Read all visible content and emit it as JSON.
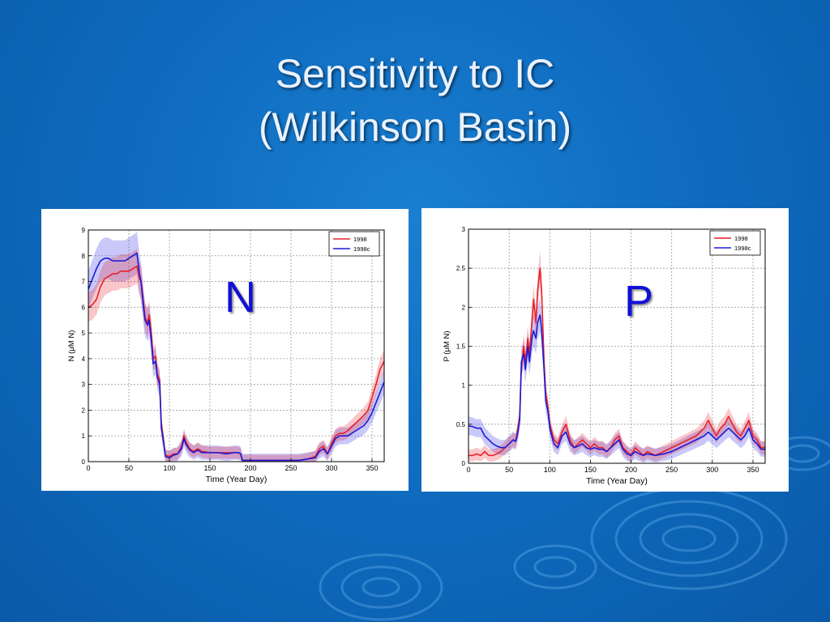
{
  "slide": {
    "title_line1": "Sensitivity to IC",
    "title_line2": "(Wilkinson Basin)"
  },
  "colors": {
    "background": "#0f6cc0",
    "series_1998": "#e8202a",
    "series_1998c": "#1a1ad8"
  },
  "chart_data": [
    {
      "type": "line",
      "panel_label": "N",
      "xlabel": "Time (Year Day)",
      "ylabel": "N (μM N)",
      "xlim": [
        0,
        365
      ],
      "ylim": [
        0,
        9
      ],
      "xticks": [
        0,
        50,
        100,
        150,
        200,
        250,
        300,
        350
      ],
      "yticks": [
        0,
        1,
        2,
        3,
        4,
        5,
        6,
        7,
        8,
        9
      ],
      "grid": true,
      "legend_position": "top-right",
      "series": [
        {
          "name": "1998",
          "color": "#e8202a",
          "x": [
            0,
            5,
            10,
            15,
            20,
            25,
            30,
            35,
            40,
            45,
            50,
            55,
            60,
            63,
            65,
            68,
            70,
            73,
            75,
            78,
            80,
            83,
            85,
            88,
            90,
            93,
            95,
            100,
            105,
            110,
            115,
            118,
            120,
            125,
            130,
            135,
            140,
            150,
            160,
            170,
            180,
            185,
            188,
            190,
            200,
            220,
            240,
            260,
            270,
            280,
            285,
            290,
            295,
            300,
            305,
            310,
            315,
            320,
            330,
            340,
            345,
            350,
            355,
            360,
            365
          ],
          "y": [
            6.0,
            6.1,
            6.3,
            6.8,
            7.1,
            7.2,
            7.3,
            7.3,
            7.4,
            7.4,
            7.4,
            7.5,
            7.6,
            7.1,
            7.0,
            6.2,
            5.6,
            5.4,
            5.7,
            4.9,
            4.0,
            4.1,
            3.4,
            3.2,
            1.5,
            0.8,
            0.25,
            0.2,
            0.3,
            0.3,
            0.6,
            1.0,
            0.8,
            0.5,
            0.4,
            0.5,
            0.4,
            0.35,
            0.35,
            0.35,
            0.35,
            0.35,
            0.3,
            0.05,
            0.05,
            0.05,
            0.05,
            0.05,
            0.1,
            0.2,
            0.5,
            0.6,
            0.3,
            0.7,
            1.0,
            1.1,
            1.1,
            1.2,
            1.5,
            1.8,
            2.0,
            2.5,
            3.0,
            3.6,
            3.9
          ]
        },
        {
          "name": "1998c",
          "color": "#1a1ad8",
          "x": [
            0,
            5,
            10,
            15,
            20,
            25,
            30,
            35,
            40,
            45,
            50,
            55,
            60,
            63,
            65,
            68,
            70,
            73,
            75,
            78,
            80,
            83,
            85,
            88,
            90,
            93,
            95,
            100,
            105,
            110,
            115,
            118,
            120,
            125,
            130,
            135,
            140,
            150,
            160,
            170,
            180,
            185,
            188,
            190,
            200,
            220,
            240,
            260,
            270,
            280,
            285,
            290,
            295,
            300,
            305,
            310,
            315,
            320,
            330,
            340,
            345,
            350,
            355,
            360,
            365
          ],
          "y": [
            6.7,
            7.1,
            7.5,
            7.8,
            7.9,
            7.9,
            7.8,
            7.8,
            7.8,
            7.8,
            7.9,
            8.0,
            8.1,
            7.3,
            7.0,
            6.0,
            5.5,
            5.3,
            5.5,
            4.6,
            3.8,
            3.9,
            3.3,
            3.0,
            1.3,
            0.7,
            0.2,
            0.15,
            0.25,
            0.3,
            0.5,
            0.9,
            0.7,
            0.45,
            0.35,
            0.45,
            0.35,
            0.35,
            0.35,
            0.3,
            0.35,
            0.35,
            0.3,
            0.05,
            0.05,
            0.05,
            0.05,
            0.05,
            0.1,
            0.15,
            0.4,
            0.5,
            0.3,
            0.6,
            0.9,
            1.0,
            1.0,
            1.0,
            1.2,
            1.4,
            1.6,
            1.9,
            2.3,
            2.7,
            3.1
          ]
        }
      ]
    },
    {
      "type": "line",
      "panel_label": "P",
      "xlabel": "Time (Year Day)",
      "ylabel": "P (μM N)",
      "xlim": [
        0,
        365
      ],
      "ylim": [
        0,
        3
      ],
      "xticks": [
        0,
        50,
        100,
        150,
        200,
        250,
        300,
        350
      ],
      "yticks": [
        0,
        0.5,
        1,
        1.5,
        2,
        2.5,
        3
      ],
      "grid": true,
      "legend_position": "top-right",
      "series": [
        {
          "name": "1998",
          "color": "#e8202a",
          "x": [
            0,
            5,
            10,
            15,
            20,
            25,
            30,
            35,
            40,
            45,
            50,
            55,
            58,
            60,
            63,
            65,
            68,
            70,
            73,
            75,
            78,
            80,
            83,
            85,
            88,
            90,
            93,
            95,
            98,
            100,
            105,
            110,
            115,
            120,
            125,
            130,
            135,
            140,
            145,
            150,
            155,
            160,
            165,
            170,
            175,
            180,
            185,
            190,
            195,
            200,
            205,
            210,
            215,
            220,
            230,
            240,
            250,
            260,
            270,
            280,
            290,
            295,
            300,
            305,
            310,
            315,
            320,
            325,
            330,
            335,
            340,
            345,
            350,
            355,
            360,
            365
          ],
          "y": [
            0.1,
            0.1,
            0.12,
            0.1,
            0.15,
            0.1,
            0.1,
            0.12,
            0.15,
            0.2,
            0.25,
            0.3,
            0.28,
            0.4,
            0.6,
            1.2,
            1.5,
            1.3,
            1.6,
            1.4,
            1.8,
            2.1,
            1.8,
            2.2,
            2.5,
            2.2,
            1.3,
            0.9,
            0.7,
            0.5,
            0.3,
            0.25,
            0.4,
            0.5,
            0.3,
            0.2,
            0.25,
            0.3,
            0.25,
            0.2,
            0.25,
            0.2,
            0.2,
            0.15,
            0.2,
            0.3,
            0.35,
            0.2,
            0.15,
            0.1,
            0.2,
            0.15,
            0.1,
            0.15,
            0.1,
            0.15,
            0.2,
            0.25,
            0.3,
            0.35,
            0.45,
            0.55,
            0.45,
            0.35,
            0.45,
            0.5,
            0.6,
            0.5,
            0.4,
            0.35,
            0.45,
            0.55,
            0.35,
            0.3,
            0.2,
            0.2
          ]
        },
        {
          "name": "1998c",
          "color": "#1a1ad8",
          "x": [
            0,
            5,
            10,
            15,
            20,
            25,
            30,
            35,
            40,
            45,
            50,
            55,
            58,
            60,
            63,
            65,
            68,
            70,
            73,
            75,
            78,
            80,
            83,
            85,
            88,
            90,
            93,
            95,
            98,
            100,
            105,
            110,
            115,
            120,
            125,
            130,
            135,
            140,
            145,
            150,
            155,
            160,
            165,
            170,
            175,
            180,
            185,
            190,
            195,
            200,
            205,
            210,
            215,
            220,
            230,
            240,
            250,
            260,
            270,
            280,
            290,
            295,
            300,
            305,
            310,
            315,
            320,
            325,
            330,
            335,
            340,
            345,
            350,
            355,
            360,
            365
          ],
          "y": [
            0.48,
            0.47,
            0.45,
            0.45,
            0.35,
            0.3,
            0.25,
            0.22,
            0.2,
            0.2,
            0.25,
            0.3,
            0.28,
            0.35,
            0.55,
            1.3,
            1.4,
            1.2,
            1.5,
            1.3,
            1.6,
            1.7,
            1.6,
            1.8,
            1.9,
            1.7,
            1.2,
            0.8,
            0.65,
            0.45,
            0.25,
            0.2,
            0.35,
            0.4,
            0.25,
            0.2,
            0.22,
            0.25,
            0.2,
            0.18,
            0.2,
            0.18,
            0.18,
            0.15,
            0.2,
            0.25,
            0.3,
            0.18,
            0.12,
            0.1,
            0.15,
            0.12,
            0.1,
            0.12,
            0.1,
            0.12,
            0.15,
            0.2,
            0.25,
            0.3,
            0.35,
            0.4,
            0.35,
            0.3,
            0.35,
            0.4,
            0.45,
            0.4,
            0.35,
            0.3,
            0.35,
            0.45,
            0.3,
            0.25,
            0.18,
            0.18
          ]
        }
      ]
    }
  ]
}
